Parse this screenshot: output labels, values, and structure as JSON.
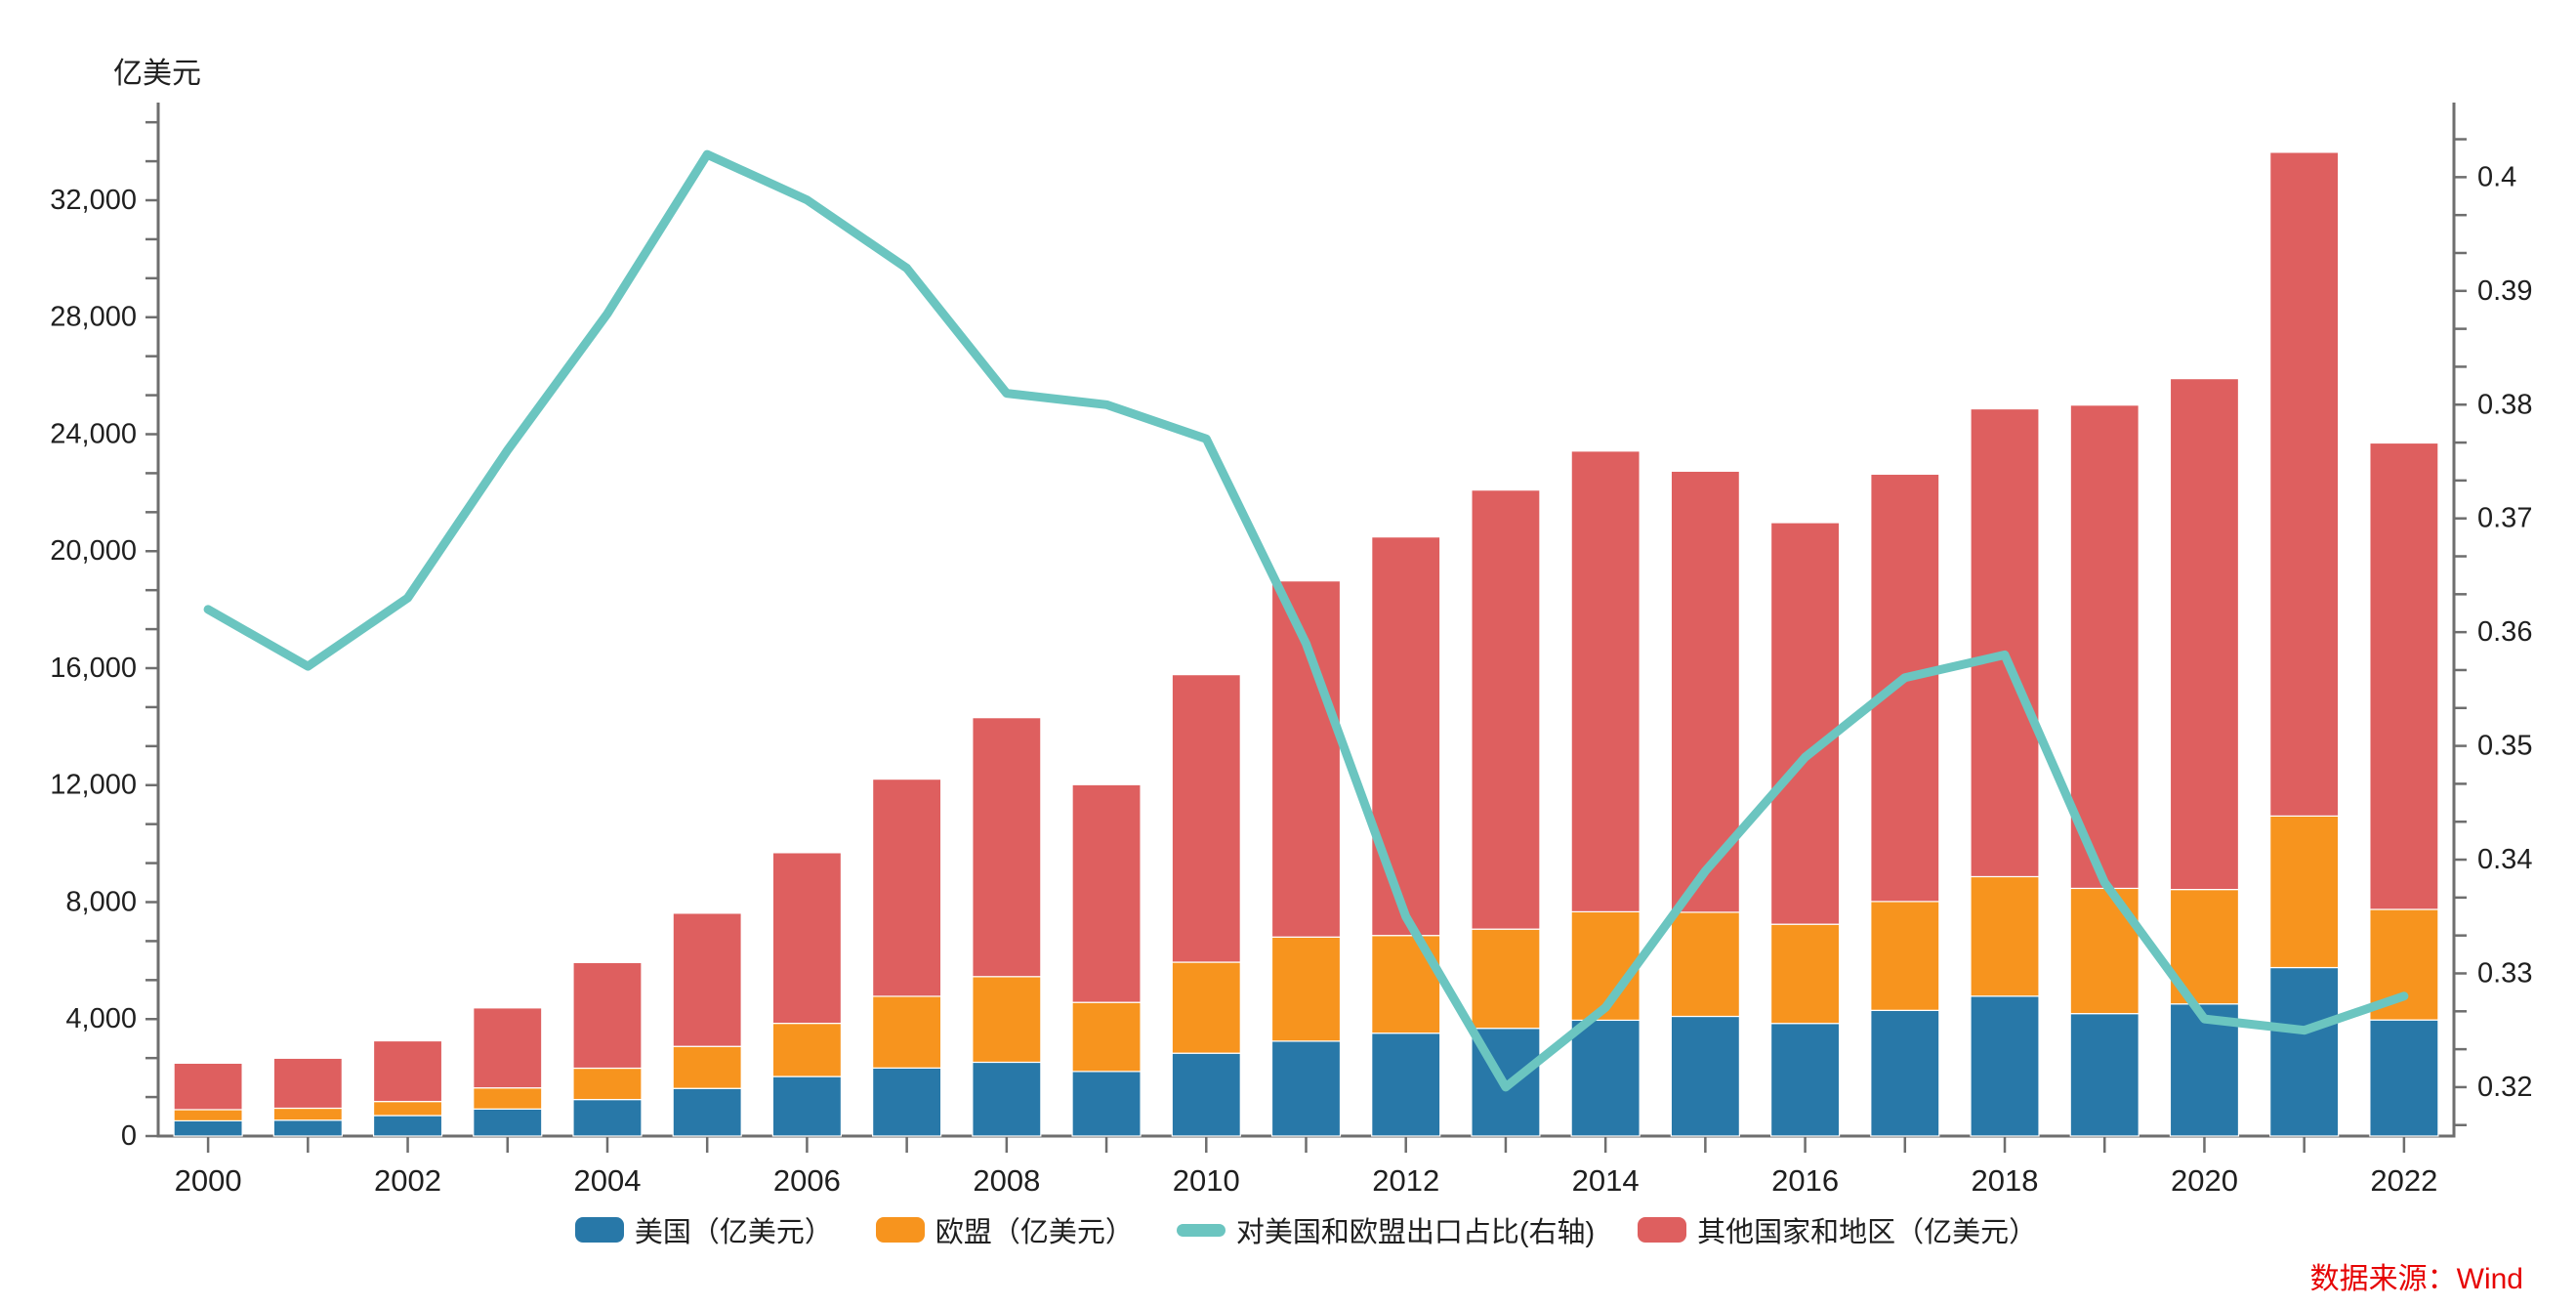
{
  "page": {
    "background": "#ffffff"
  },
  "source_note": "数据来源：Wind",
  "chart_data": {
    "type": "combo-stacked-bar-line",
    "title": "",
    "categories": [
      2000,
      2001,
      2002,
      2003,
      2004,
      2005,
      2006,
      2007,
      2008,
      2009,
      2010,
      2011,
      2012,
      2013,
      2014,
      2015,
      2016,
      2017,
      2018,
      2019,
      2020,
      2021,
      2022
    ],
    "x_axis": {
      "label_every_n_years": 2,
      "labels_shown": [
        "2000",
        "2002",
        "2004",
        "2006",
        "2008",
        "2010",
        "2012",
        "2014",
        "2016",
        "2018",
        "2020",
        "2022"
      ]
    },
    "left_axis": {
      "title": "亿美元",
      "min": 0,
      "max": 35240,
      "label_step": 4000,
      "minor_divisions": 3,
      "tick_labels": [
        "0",
        "4,000",
        "8,000",
        "12,000",
        "16,000",
        "20,000",
        "24,000",
        "28,000",
        "32,000"
      ]
    },
    "right_axis": {
      "min": 0.3157,
      "max": 0.4063,
      "label_start": 0.32,
      "label_step": 0.01,
      "minor_divisions": 3,
      "tick_labels": [
        "0.32",
        "0.33",
        "0.34",
        "0.35",
        "0.36",
        "0.37",
        "0.38",
        "0.39",
        "0.4"
      ]
    },
    "colors": {
      "us": "#2878A8",
      "eu": "#F7941E",
      "other": "#DE5F5F",
      "line": "#6BC5C0",
      "axis": "#6E6E6E",
      "text": "#1F1F1F",
      "source": "#E60505"
    },
    "series": [
      {
        "key": "us",
        "name": "美国（亿美元）",
        "type": "bar",
        "stack": "total",
        "axis": "left",
        "values": [
          521,
          543,
          700,
          925,
          1249,
          1629,
          2035,
          2327,
          2523,
          2208,
          2833,
          3245,
          3518,
          3684,
          3961,
          4092,
          3851,
          4298,
          4784,
          4187,
          4518,
          5761,
          3970
        ]
      },
      {
        "key": "eu",
        "name": "欧盟（亿美元）",
        "type": "bar",
        "stack": "total",
        "axis": "left",
        "values": [
          382,
          409,
          482,
          722,
          1072,
          1437,
          1820,
          2452,
          2929,
          2363,
          3112,
          3560,
          3340,
          3392,
          3708,
          3560,
          3392,
          3722,
          4086,
          4283,
          3913,
          5182,
          3780
        ]
      },
      {
        "key": "other",
        "name": "其他国家和地区（亿美元）",
        "type": "bar",
        "stack": "total",
        "axis": "left",
        "values": [
          1589,
          1709,
          2074,
          2735,
          3612,
          4554,
          5835,
          7426,
          8855,
          7445,
          9833,
          12179,
          13629,
          15014,
          15754,
          15083,
          13733,
          14613,
          15997,
          16525,
          17469,
          22697,
          15950
        ]
      },
      {
        "key": "line",
        "name": "对美国和欧盟出口占比(右轴)",
        "type": "line",
        "axis": "right",
        "values": [
          0.362,
          0.357,
          0.363,
          0.376,
          0.388,
          0.402,
          0.398,
          0.392,
          0.381,
          0.38,
          0.377,
          0.359,
          0.335,
          0.32,
          0.327,
          0.339,
          0.349,
          0.356,
          0.358,
          0.338,
          0.326,
          0.325,
          0.328
        ]
      }
    ],
    "legend": [
      {
        "key": "us",
        "label": "美国（亿美元）",
        "swatch": "box"
      },
      {
        "key": "eu",
        "label": "欧盟（亿美元）",
        "swatch": "box"
      },
      {
        "key": "line",
        "label": "对美国和欧盟出口占比(右轴)",
        "swatch": "line"
      },
      {
        "key": "other",
        "label": "其他国家和地区（亿美元）",
        "swatch": "box"
      }
    ]
  }
}
